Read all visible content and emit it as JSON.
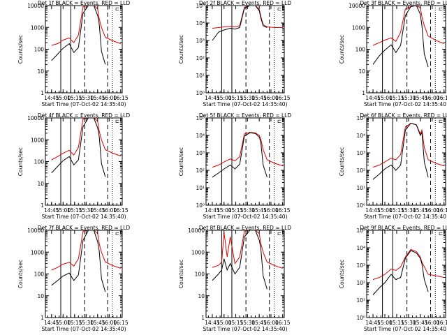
{
  "figure": {
    "x_tick_labels": [
      "14:45",
      "15:00",
      "15:15",
      "15:30",
      "15:45",
      "16:00",
      "16:15"
    ],
    "x_axis_label": "Start Time (07-Oct-02 14:35:40)",
    "y_axis_label": "Counts/sec",
    "top_corner_label": "⊏"
  },
  "colors": {
    "events": "#000000",
    "lld": "#e00000"
  },
  "chart_data": [
    {
      "type": "line",
      "title": "Det 1f BLACK = Events, RED = LLD",
      "ylim": [
        1,
        10000
      ],
      "y_scale": "log",
      "y_ticks": [
        1,
        10,
        100,
        1000,
        10000
      ],
      "y_tick_labels": [
        "1",
        "10",
        "100",
        "1000",
        "10000"
      ],
      "x": [
        "14:45",
        "14:53",
        "15:00",
        "15:08",
        "15:14",
        "15:20",
        "15:26",
        "15:33",
        "15:40",
        "15:45",
        "15:47",
        "15:50",
        "15:55",
        "16:05",
        "16:15"
      ],
      "series": [
        {
          "name": "LLD",
          "values": [
            150,
            180,
            260,
            330,
            200,
            450,
            9000,
            10000,
            10000,
            7000,
            2500,
            1000,
            350,
            240,
            180
          ]
        },
        {
          "name": "Events",
          "values": [
            30,
            60,
            110,
            180,
            70,
            120,
            4500,
            10000,
            10000,
            3500,
            1500,
            80,
            20,
            null,
            null
          ]
        }
      ],
      "vlines_solid": [
        "14:57",
        "15:10"
      ],
      "vlines_dashed": [
        "15:28",
        "15:58"
      ],
      "vline_dotted": "16:04"
    },
    {
      "type": "line",
      "title": "Det 2f BLACK = Events, RED = LLD",
      "ylim": [
        1,
        100000
      ],
      "y_scale": "log",
      "y_ticks": [
        1,
        10,
        100,
        1000,
        10000,
        100000
      ],
      "y_tick_labels": [
        "10⁰",
        "10¹",
        "10²",
        "10³",
        "10⁴",
        "10⁵"
      ],
      "x": [
        "14:45",
        "14:53",
        "15:00",
        "15:08",
        "15:14",
        "15:20",
        "15:26",
        "15:33",
        "15:40",
        "15:45",
        "15:47",
        "15:50",
        "15:55",
        "16:05",
        "16:15"
      ],
      "series": [
        {
          "name": "LLD",
          "values": [
            5000,
            5500,
            6000,
            6500,
            6000,
            7000,
            80000,
            100000,
            100000,
            60000,
            25000,
            8000,
            6000,
            5500,
            5500
          ]
        },
        {
          "name": "Events",
          "values": [
            1000,
            3000,
            4000,
            5000,
            4500,
            5500,
            70000,
            100000,
            100000,
            50000,
            20000,
            7000,
            5500,
            null,
            null
          ]
        }
      ],
      "vlines_solid": [
        "14:57",
        "15:10"
      ],
      "vlines_dashed": [
        "15:28",
        "15:58"
      ],
      "vline_dotted": "16:04"
    },
    {
      "type": "line",
      "title": "Det 3f BLACK = Events, RED = LLD",
      "ylim": [
        1,
        10000
      ],
      "y_scale": "log",
      "y_ticks": [
        1,
        10,
        100,
        1000,
        10000
      ],
      "y_tick_labels": [
        "1",
        "10",
        "100",
        "1000",
        "10000"
      ],
      "x": [
        "14:45",
        "14:53",
        "15:00",
        "15:08",
        "15:14",
        "15:20",
        "15:26",
        "15:33",
        "15:40",
        "15:45",
        "15:47",
        "15:50",
        "15:55",
        "16:05",
        "16:15"
      ],
      "series": [
        {
          "name": "LLD",
          "values": [
            150,
            200,
            260,
            330,
            230,
            600,
            7000,
            9000,
            10000,
            8000,
            3000,
            1200,
            400,
            250,
            180
          ]
        },
        {
          "name": "Events",
          "values": [
            20,
            50,
            90,
            160,
            70,
            150,
            3500,
            9000,
            10000,
            4000,
            1200,
            60,
            15,
            null,
            null
          ]
        }
      ],
      "vlines_solid": [
        "14:57",
        "15:10"
      ],
      "vlines_dashed": [
        "15:28",
        "15:58"
      ],
      "vline_dotted": "16:04"
    },
    {
      "type": "line",
      "title": "Det 4f BLACK = Events, RED = LLD",
      "ylim": [
        1,
        10000
      ],
      "y_scale": "log",
      "y_ticks": [
        1,
        10,
        100,
        1000,
        10000
      ],
      "y_tick_labels": [
        "1",
        "10",
        "100",
        "1000",
        "10000"
      ],
      "x": [
        "14:45",
        "14:53",
        "15:00",
        "15:08",
        "15:14",
        "15:20",
        "15:26",
        "15:33",
        "15:40",
        "15:45",
        "15:47",
        "15:50",
        "15:55",
        "16:05",
        "16:15"
      ],
      "series": [
        {
          "name": "LLD",
          "values": [
            120,
            170,
            240,
            330,
            200,
            450,
            9000,
            10000,
            10000,
            7000,
            2500,
            1000,
            350,
            240,
            180
          ]
        },
        {
          "name": "Events",
          "values": [
            30,
            60,
            110,
            170,
            70,
            120,
            4000,
            10000,
            10000,
            3500,
            1500,
            80,
            20,
            null,
            null
          ]
        }
      ],
      "vlines_solid": [
        "14:57",
        "15:10"
      ],
      "vlines_dashed": [
        "15:28",
        "15:58"
      ],
      "vline_dotted": "16:04"
    },
    {
      "type": "line",
      "title": "Det 5f BLACK = Events, RED = LLD",
      "ylim": [
        1,
        100000
      ],
      "y_scale": "log",
      "y_ticks": [
        1,
        10,
        100,
        1000,
        10000,
        100000
      ],
      "y_tick_labels": [
        "10⁰",
        "10¹",
        "10²",
        "10³",
        "10⁴",
        "10⁵"
      ],
      "x": [
        "14:45",
        "14:53",
        "15:00",
        "15:08",
        "15:14",
        "15:20",
        "15:26",
        "15:33",
        "15:40",
        "15:45",
        "15:47",
        "15:50",
        "15:55",
        "16:05",
        "16:15"
      ],
      "series": [
        {
          "name": "LLD",
          "values": [
            150,
            200,
            300,
            450,
            350,
            600,
            12000,
            15000,
            14000,
            10000,
            6000,
            1500,
            400,
            250,
            180
          ]
        },
        {
          "name": "Events",
          "values": [
            40,
            70,
            120,
            200,
            120,
            220,
            9000,
            14000,
            13000,
            8000,
            4000,
            200,
            40,
            null,
            null
          ]
        }
      ],
      "vlines_solid": [
        "14:57",
        "15:10"
      ],
      "vlines_dashed": [
        "15:28",
        "15:58"
      ],
      "vline_dotted": "16:04"
    },
    {
      "type": "line",
      "title": "Det 6f BLACK = Events, RED = LLD",
      "ylim": [
        1,
        100000
      ],
      "y_scale": "log",
      "y_ticks": [
        1,
        10,
        100,
        1000,
        10000,
        100000
      ],
      "y_tick_labels": [
        "10⁰",
        "10¹",
        "10²",
        "10³",
        "10⁴",
        "10⁵"
      ],
      "x": [
        "14:45",
        "14:53",
        "15:00",
        "15:08",
        "15:14",
        "15:20",
        "15:26",
        "15:33",
        "15:40",
        "15:45",
        "15:47",
        "15:50",
        "15:55",
        "16:05",
        "16:15"
      ],
      "series": [
        {
          "name": "LLD",
          "values": [
            150,
            200,
            300,
            500,
            400,
            800,
            30000,
            50000,
            40000,
            12000,
            20000,
            2000,
            400,
            250,
            180
          ]
        },
        {
          "name": "Events",
          "values": [
            30,
            60,
            120,
            200,
            100,
            200,
            20000,
            50000,
            40000,
            10000,
            15000,
            300,
            40,
            null,
            null
          ]
        }
      ],
      "vlines_solid": [
        "14:57",
        "15:10"
      ],
      "vlines_dashed": [
        "15:28",
        "15:58"
      ],
      "vline_dotted": "16:04"
    },
    {
      "type": "line",
      "title": "Det 7f BLACK = Events, RED = LLD",
      "ylim": [
        1,
        10000
      ],
      "y_scale": "log",
      "y_ticks": [
        1,
        10,
        100,
        1000,
        10000
      ],
      "y_tick_labels": [
        "1",
        "10",
        "100",
        "1000",
        "10000"
      ],
      "x": [
        "14:45",
        "14:53",
        "15:00",
        "15:08",
        "15:14",
        "15:20",
        "15:26",
        "15:33",
        "15:40",
        "15:45",
        "15:47",
        "15:50",
        "15:55",
        "16:05",
        "16:15"
      ],
      "series": [
        {
          "name": "LLD",
          "values": [
            150,
            200,
            280,
            340,
            230,
            500,
            9000,
            10000,
            10000,
            7000,
            2500,
            1000,
            350,
            240,
            180
          ]
        },
        {
          "name": "Events",
          "values": [
            30,
            50,
            80,
            110,
            50,
            90,
            3500,
            10000,
            10000,
            3000,
            1200,
            60,
            15,
            null,
            null
          ]
        }
      ],
      "vlines_solid": [
        "14:57",
        "15:10"
      ],
      "vlines_dashed": [
        "15:28",
        "15:58"
      ],
      "vline_dotted": "16:04"
    },
    {
      "type": "line",
      "title": "Det 8f BLACK = Events, RED = LLD",
      "ylim": [
        1,
        10000
      ],
      "y_scale": "log",
      "y_ticks": [
        1,
        10,
        100,
        1000,
        10000
      ],
      "y_tick_labels": [
        "1",
        "10",
        "100",
        "1000",
        "10000"
      ],
      "x": [
        "14:45",
        "14:53",
        "14:57",
        "15:00",
        "15:04",
        "15:08",
        "15:14",
        "15:20",
        "15:26",
        "15:33",
        "15:40",
        "15:45",
        "15:47",
        "15:50",
        "15:55",
        "16:05",
        "16:15"
      ],
      "series": [
        {
          "name": "LLD",
          "values": [
            200,
            250,
            350,
            8000,
            600,
            5000,
            300,
            600,
            9000,
            10000,
            10000,
            7000,
            2500,
            1000,
            350,
            240,
            180
          ]
        },
        {
          "name": "Events",
          "values": [
            50,
            100,
            150,
            500,
            150,
            300,
            100,
            200,
            5000,
            10000,
            10000,
            3500,
            1500,
            80,
            20,
            null,
            null
          ]
        }
      ],
      "vlines_solid": [
        "14:57",
        "15:10"
      ],
      "vlines_dashed": [
        "15:28",
        "15:58"
      ],
      "vline_dotted": "16:04"
    },
    {
      "type": "line",
      "title": "Det 9f BLACK = Events, RED = LLD",
      "ylim": [
        1,
        100000
      ],
      "y_scale": "log",
      "y_ticks": [
        1,
        10,
        100,
        1000,
        10000,
        100000
      ],
      "y_tick_labels": [
        "10⁰",
        "10¹",
        "10²",
        "10³",
        "10⁴",
        "10⁵"
      ],
      "x": [
        "14:45",
        "14:53",
        "15:00",
        "15:08",
        "15:14",
        "15:20",
        "15:26",
        "15:33",
        "15:40",
        "15:45",
        "15:47",
        "15:50",
        "15:55",
        "16:05",
        "16:15"
      ],
      "series": [
        {
          "name": "LLD",
          "values": [
            150,
            200,
            300,
            600,
            500,
            800,
            3000,
            8000,
            6000,
            3000,
            1500,
            800,
            300,
            250,
            200
          ]
        },
        {
          "name": "Events",
          "values": [
            20,
            50,
            100,
            300,
            150,
            200,
            2500,
            7000,
            5000,
            2500,
            1200,
            150,
            30,
            null,
            null
          ]
        }
      ],
      "vlines_solid": [
        "14:57",
        "15:10"
      ],
      "vlines_dashed": [
        "15:28",
        "15:58"
      ],
      "vline_dotted": "16:04"
    }
  ]
}
